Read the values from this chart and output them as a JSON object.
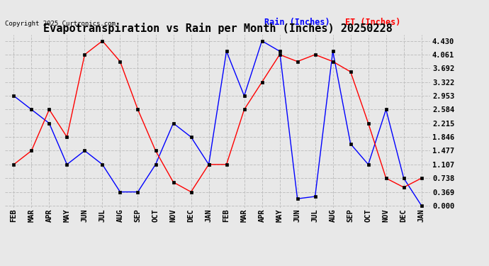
{
  "title": "Evapotranspiration vs Rain per Month (Inches) 20250228",
  "copyright": "Copyright 2025 Curtronics.com",
  "legend_rain": "Rain (Inches)",
  "legend_et": "ET (Inches)",
  "months": [
    "FEB",
    "MAR",
    "APR",
    "MAY",
    "JUN",
    "JUL",
    "AUG",
    "SEP",
    "OCT",
    "NOV",
    "DEC",
    "JAN",
    "FEB",
    "MAR",
    "APR",
    "MAY",
    "JUN",
    "JUL",
    "AUG",
    "SEP",
    "OCT",
    "NOV",
    "DEC",
    "JAN"
  ],
  "rain": [
    2.953,
    2.584,
    2.215,
    1.107,
    1.477,
    1.107,
    0.369,
    0.369,
    1.107,
    2.215,
    1.846,
    1.107,
    4.153,
    2.953,
    4.43,
    4.153,
    0.185,
    0.246,
    4.153,
    1.661,
    1.107,
    2.584,
    0.738,
    0.0
  ],
  "et": [
    1.107,
    1.477,
    2.584,
    1.846,
    4.061,
    4.43,
    3.876,
    2.584,
    1.477,
    0.631,
    0.369,
    1.107,
    1.107,
    2.584,
    3.322,
    4.061,
    3.876,
    4.061,
    3.876,
    3.599,
    2.215,
    0.738,
    0.492,
    0.738
  ],
  "rain_color": "blue",
  "et_color": "red",
  "marker_color": "black",
  "background_color": "#e8e8e8",
  "grid_color": "#c0c0c0",
  "yticks": [
    0.0,
    0.369,
    0.738,
    1.107,
    1.477,
    1.846,
    2.215,
    2.584,
    2.953,
    3.322,
    3.692,
    4.061,
    4.43
  ],
  "ylim": [
    -0.05,
    4.6
  ],
  "title_fontsize": 11,
  "tick_fontsize": 7.5,
  "copyright_fontsize": 6.5,
  "legend_fontsize": 8.5
}
